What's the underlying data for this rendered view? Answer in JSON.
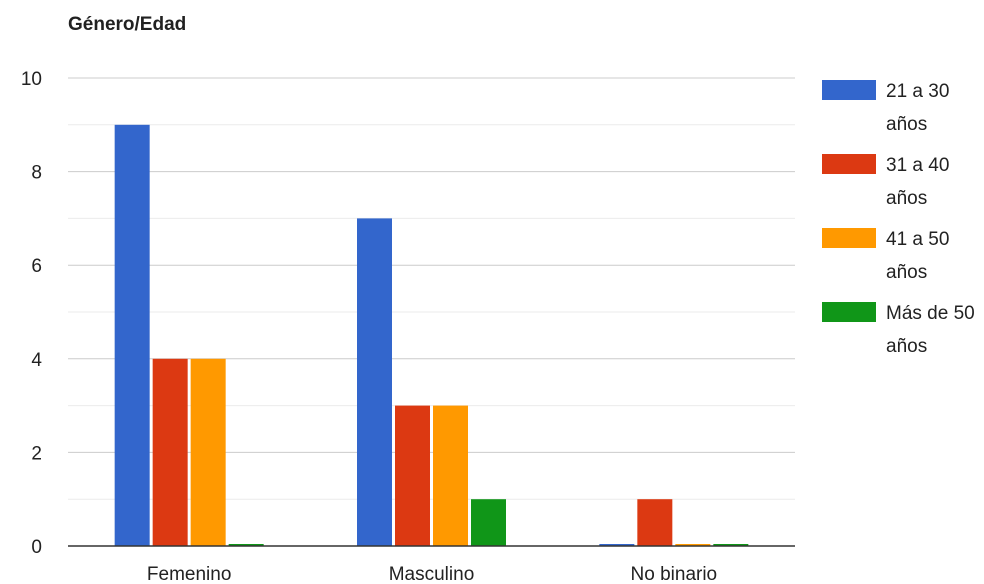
{
  "chart_data": {
    "type": "bar",
    "title": "Género/Edad",
    "xlabel": "",
    "ylabel": "",
    "categories": [
      "Femenino",
      "Masculino",
      "No binario"
    ],
    "series": [
      {
        "name": "21 a 30 años",
        "color": "#3366cc",
        "values": [
          9,
          7,
          0
        ]
      },
      {
        "name": "31 a 40 años",
        "color": "#dc3912",
        "values": [
          4,
          3,
          1
        ]
      },
      {
        "name": "41 a 50 años",
        "color": "#ff9900",
        "values": [
          4,
          3,
          0
        ]
      },
      {
        "name": "Más de 50 años",
        "color": "#109618",
        "values": [
          0,
          1,
          0
        ]
      }
    ],
    "ylim": [
      0,
      10
    ],
    "yticks": [
      "0",
      "2",
      "4",
      "6",
      "8",
      "10"
    ],
    "grid": true,
    "legend": "right"
  }
}
